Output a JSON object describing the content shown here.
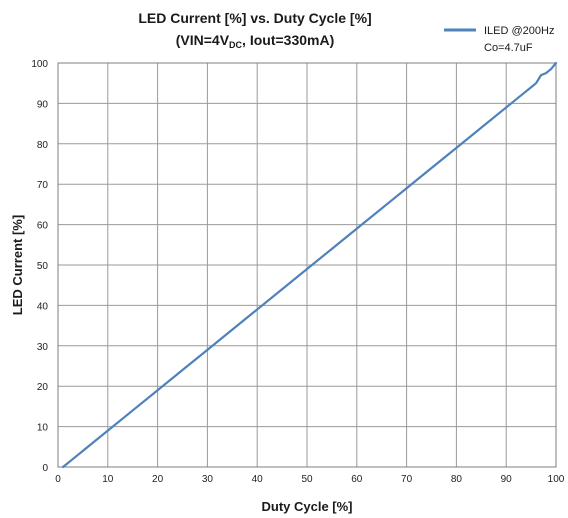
{
  "chart_data": {
    "type": "line",
    "title": {
      "line1": "LED Current [%] vs. Duty Cycle [%]",
      "line2_prefix": "(VIN=4V",
      "line2_subscript": "DC",
      "line2_suffix": ",  Iout=330mA)"
    },
    "xlabel": "Duty Cycle [%]",
    "ylabel": "LED Current [%]",
    "xlim": [
      0,
      100
    ],
    "ylim": [
      0,
      100
    ],
    "xticks": [
      0,
      10,
      20,
      30,
      40,
      50,
      60,
      70,
      80,
      90,
      100
    ],
    "yticks": [
      0,
      10,
      20,
      30,
      40,
      50,
      60,
      70,
      80,
      90,
      100
    ],
    "grid": true,
    "legend_position": "top-right",
    "series": [
      {
        "name": "ILED @200Hz",
        "name_line2": "Co=4.7uF",
        "color": "#4f81bd",
        "x": [
          1,
          2,
          3,
          5,
          7,
          10,
          15,
          20,
          25,
          30,
          35,
          40,
          45,
          50,
          55,
          60,
          65,
          70,
          75,
          80,
          85,
          90,
          93,
          95,
          96,
          97,
          98,
          98.5,
          99,
          100
        ],
        "y": [
          0,
          1,
          2,
          4,
          6,
          9,
          14,
          19,
          24,
          29,
          34,
          39,
          44,
          49,
          54,
          59,
          64,
          69,
          74,
          79,
          84,
          89,
          92,
          94,
          95,
          97,
          97.5,
          98,
          98.5,
          100
        ]
      }
    ]
  }
}
